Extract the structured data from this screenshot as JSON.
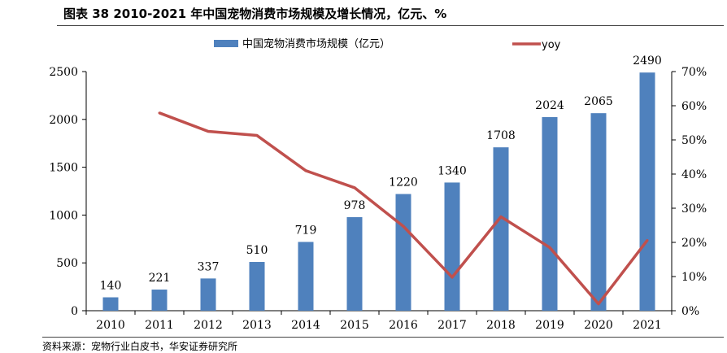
{
  "header": {
    "title": "图表 38 2010-2021 年中国宠物消费市场规模及增长情况，亿元、%"
  },
  "footer": {
    "source": "资料来源：宠物行业白皮书，华安证券研究所"
  },
  "colors": {
    "bar": "#4f81bd",
    "line": "#c0504d",
    "axis": "#000000"
  },
  "chart_data": {
    "type": "bar",
    "title": "",
    "categories": [
      "2010",
      "2011",
      "2012",
      "2013",
      "2014",
      "2015",
      "2016",
      "2017",
      "2018",
      "2019",
      "2020",
      "2021"
    ],
    "series": [
      {
        "name": "中国宠物消费市场规模（亿元）",
        "type": "bar",
        "axis": "left",
        "values": [
          140,
          221,
          337,
          510,
          719,
          978,
          1220,
          1340,
          1708,
          2024,
          2065,
          2490
        ],
        "data_labels": [
          "140",
          "221",
          "337",
          "510",
          "719",
          "978",
          "1220",
          "1340",
          "1708",
          "2024",
          "2065",
          "2490"
        ]
      },
      {
        "name": "yoy",
        "type": "line",
        "axis": "right",
        "values": [
          null,
          57.9,
          52.5,
          51.3,
          41.0,
          36.0,
          24.7,
          9.8,
          27.5,
          18.5,
          2.0,
          20.6
        ]
      }
    ],
    "left_axis": {
      "range": [
        0,
        2500
      ],
      "ticks": [
        "0",
        "500",
        "1000",
        "1500",
        "2000",
        "2500"
      ],
      "tick_values": [
        0,
        500,
        1000,
        1500,
        2000,
        2500
      ]
    },
    "right_axis": {
      "range": [
        0,
        70
      ],
      "ticks": [
        "0%",
        "10%",
        "20%",
        "30%",
        "40%",
        "50%",
        "60%",
        "70%"
      ],
      "tick_values": [
        0,
        10,
        20,
        30,
        40,
        50,
        60,
        70
      ]
    },
    "grid": false,
    "legend_position": "top"
  }
}
